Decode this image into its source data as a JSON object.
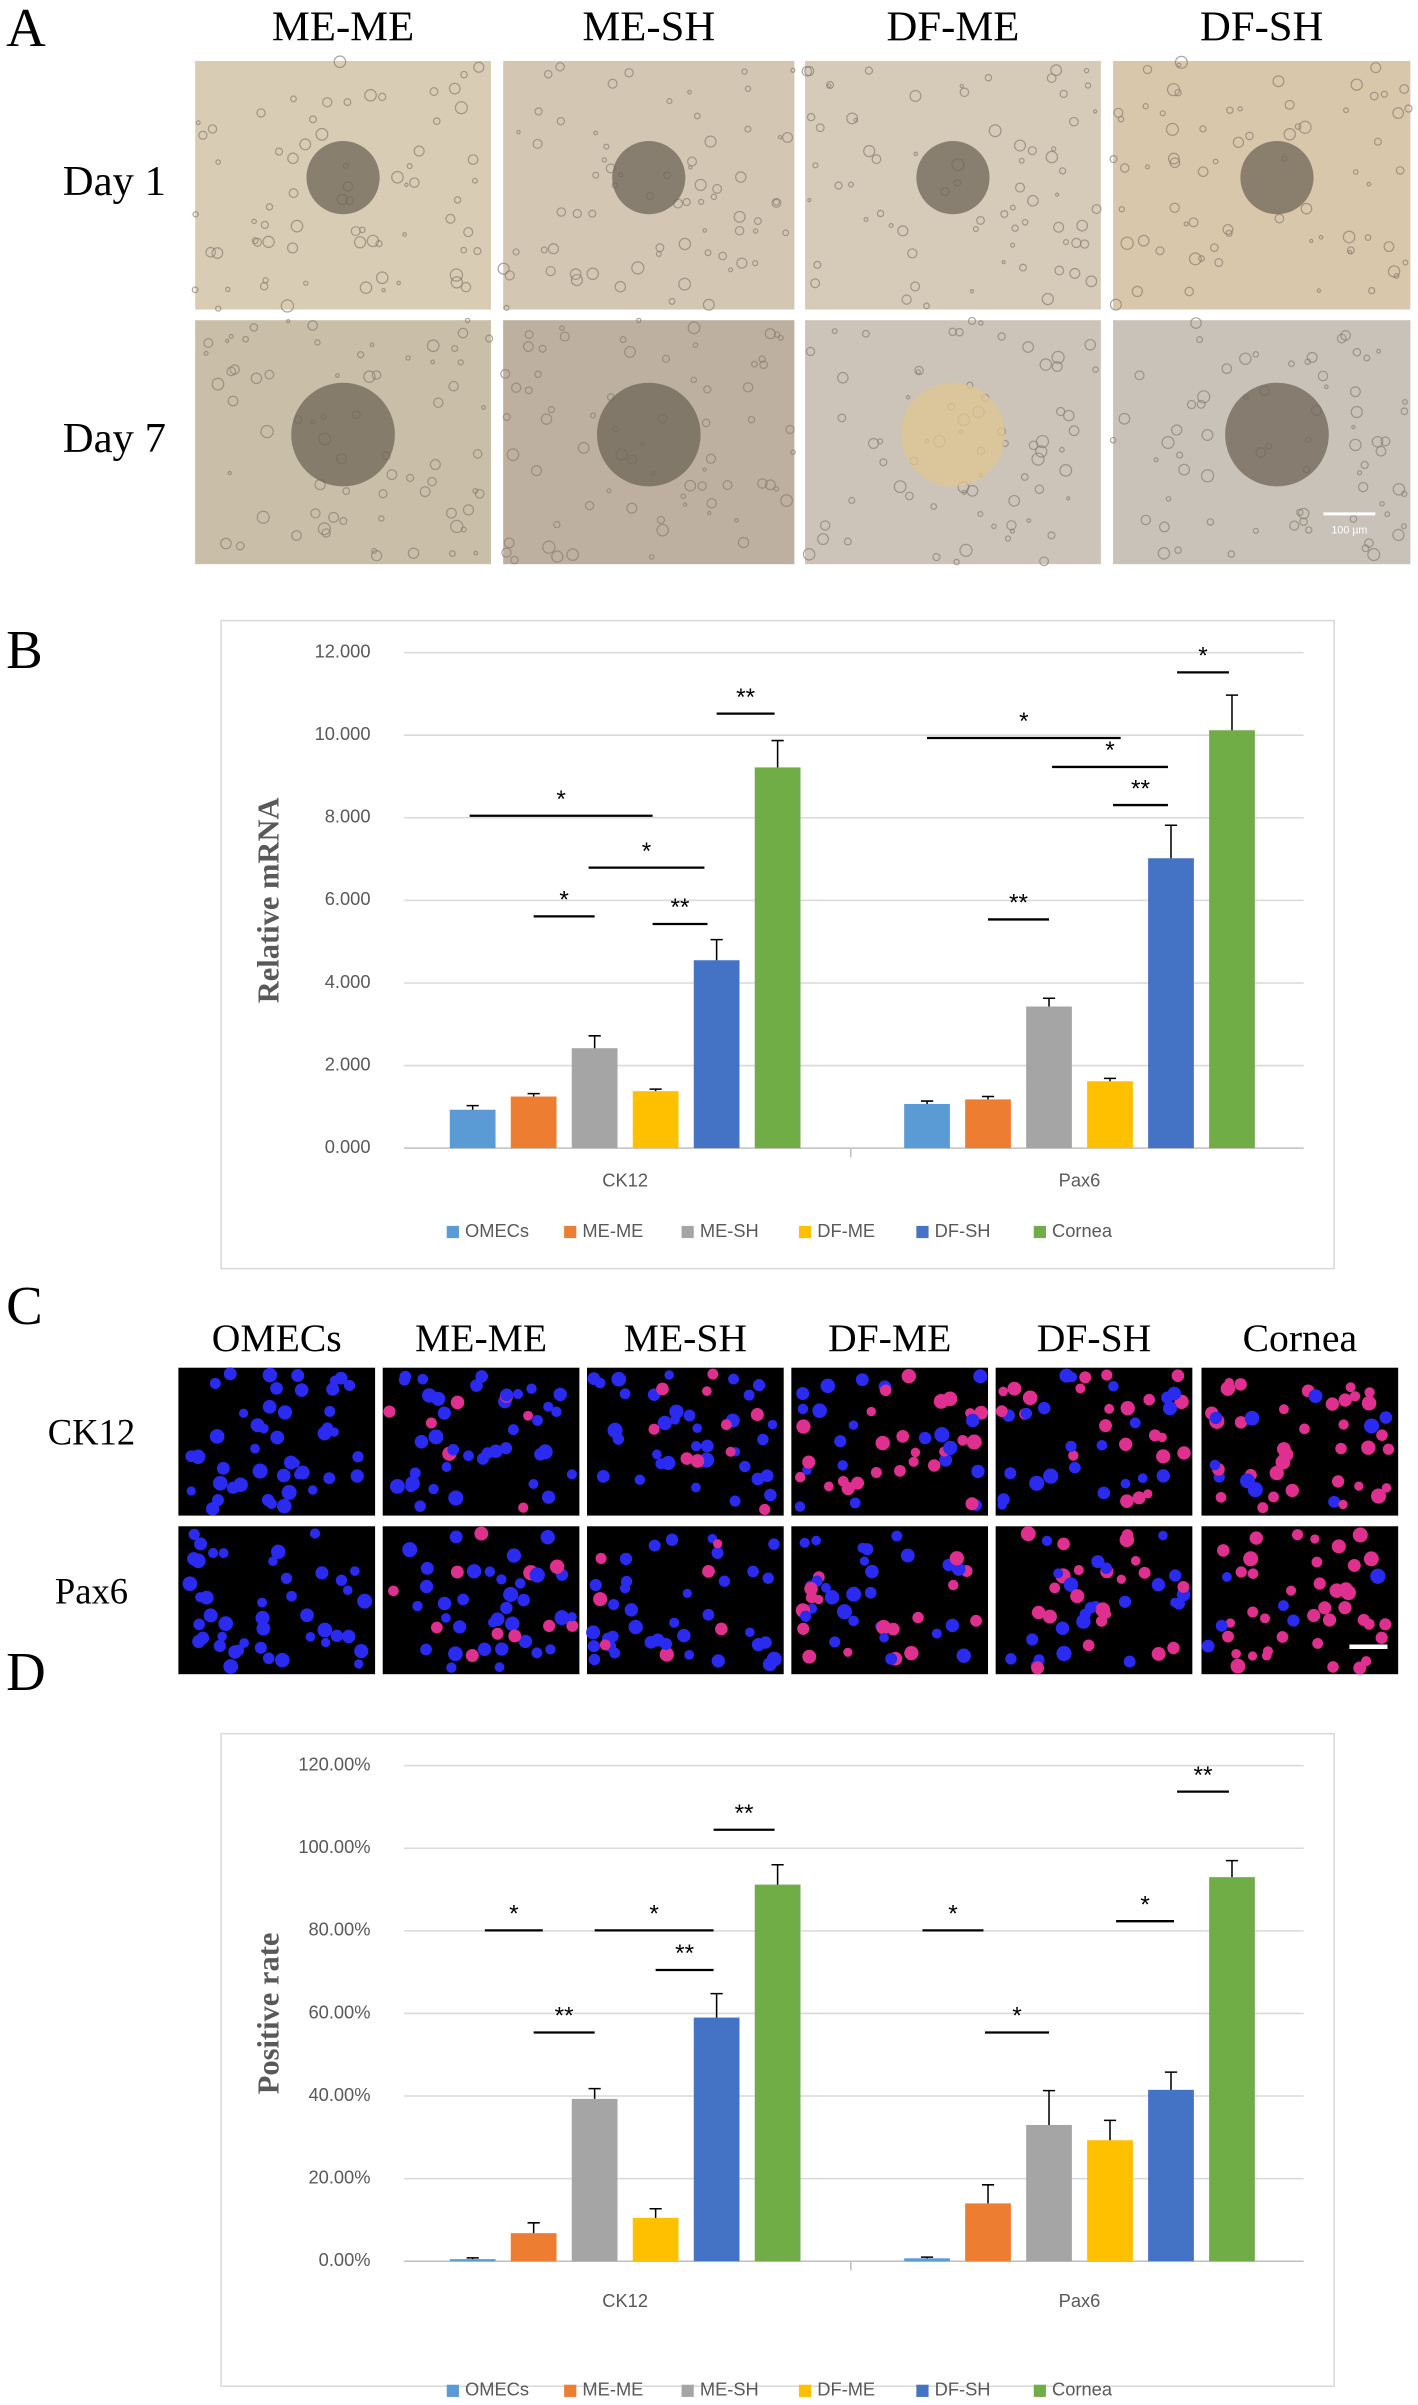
{
  "panel_labels": [
    "A",
    "B",
    "C",
    "D"
  ],
  "panel_a": {
    "columns": [
      "ME-ME",
      "ME-SH",
      "DF-ME",
      "DF-SH"
    ],
    "rows": [
      "Day 1",
      "Day 7"
    ],
    "scale_bar": "100 µm"
  },
  "panel_c": {
    "columns": [
      "OMECs",
      "ME-ME",
      "ME-SH",
      "DF-ME",
      "DF-SH",
      "Cornea"
    ],
    "rows": [
      "CK12",
      "Pax6"
    ]
  },
  "chart_data": [
    {
      "type": "bar",
      "y_label": "Relative mRNA",
      "categories": [
        "CK12",
        "Pax6"
      ],
      "series": [
        {
          "name": "OMECs",
          "color": "#5b9bd5",
          "values": [
            0.93,
            1.07
          ],
          "errors": [
            0.1,
            0.07
          ]
        },
        {
          "name": "ME-ME",
          "color": "#ed7d31",
          "values": [
            1.25,
            1.18
          ],
          "errors": [
            0.07,
            0.07
          ]
        },
        {
          "name": "ME-SH",
          "color": "#a5a5a5",
          "values": [
            2.42,
            3.43
          ],
          "errors": [
            0.3,
            0.2
          ]
        },
        {
          "name": "DF-ME",
          "color": "#ffc000",
          "values": [
            1.38,
            1.62
          ],
          "errors": [
            0.05,
            0.07
          ]
        },
        {
          "name": "DF-SH",
          "color": "#4472c4",
          "values": [
            4.55,
            7.02
          ],
          "errors": [
            0.5,
            0.8
          ]
        },
        {
          "name": "Cornea",
          "color": "#70ad47",
          "values": [
            9.22,
            10.12
          ],
          "errors": [
            0.65,
            0.85
          ]
        }
      ],
      "ylim": [
        0,
        12
      ],
      "yticks": [
        {
          "value": 0,
          "label": "0.000"
        },
        {
          "value": 2,
          "label": "2.000"
        },
        {
          "value": 4,
          "label": "4.000"
        },
        {
          "value": 6,
          "label": "6.000"
        },
        {
          "value": 8,
          "label": "8.000"
        },
        {
          "value": 10,
          "label": "10.000"
        },
        {
          "value": 12,
          "label": "12.000"
        }
      ],
      "grid": true,
      "annotations": [
        "*",
        "*",
        "*",
        "**",
        "**",
        "*",
        "**",
        "*",
        "**",
        "*"
      ]
    },
    {
      "type": "bar",
      "y_label": "Positive rate",
      "categories": [
        "CK12",
        "Pax6"
      ],
      "series": [
        {
          "name": "OMECs",
          "color": "#5b9bd5",
          "values": [
            0.5,
            0.7
          ],
          "errors": [
            0.3,
            0.3
          ]
        },
        {
          "name": "ME-ME",
          "color": "#ed7d31",
          "values": [
            6.8,
            14
          ],
          "errors": [
            2.5,
            4.5
          ]
        },
        {
          "name": "ME-SH",
          "color": "#a5a5a5",
          "values": [
            39.3,
            33
          ],
          "errors": [
            2.5,
            8.3
          ]
        },
        {
          "name": "DF-ME",
          "color": "#ffc000",
          "values": [
            10.5,
            29.3
          ],
          "errors": [
            2.2,
            4.8
          ]
        },
        {
          "name": "DF-SH",
          "color": "#4472c4",
          "values": [
            59,
            41.5
          ],
          "errors": [
            5.8,
            4.3
          ]
        },
        {
          "name": "Cornea",
          "color": "#70ad47",
          "values": [
            91.2,
            93
          ],
          "errors": [
            4.8,
            4
          ]
        }
      ],
      "ylim": [
        0,
        120
      ],
      "yticks": [
        {
          "value": 0,
          "label": "0.00%"
        },
        {
          "value": 20,
          "label": "20.00%"
        },
        {
          "value": 40,
          "label": "40.00%"
        },
        {
          "value": 60,
          "label": "60.00%"
        },
        {
          "value": 80,
          "label": "80.00%"
        },
        {
          "value": 100,
          "label": "100.00%"
        },
        {
          "value": 120,
          "label": "120.00%"
        }
      ],
      "grid": true,
      "annotations": [
        "*",
        "**",
        "*",
        "**",
        "**",
        "*",
        "*",
        "*",
        "**"
      ]
    }
  ]
}
